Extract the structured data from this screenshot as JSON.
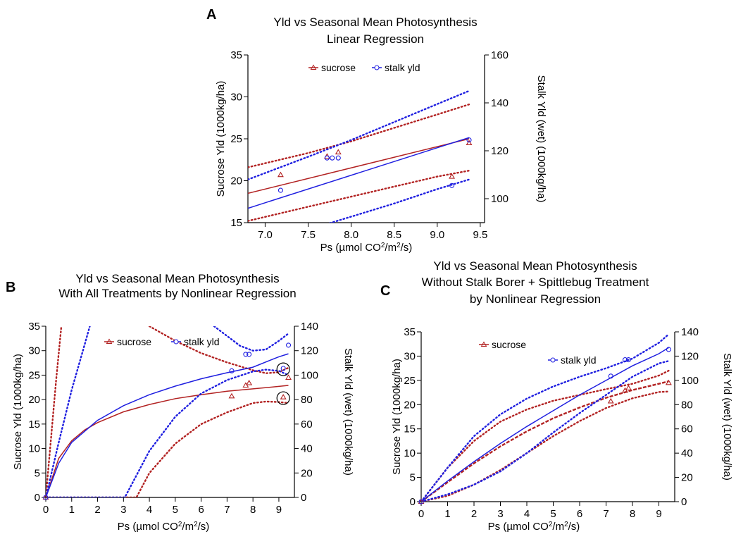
{
  "chart_data": [
    {
      "panel": "A",
      "type": "scatter",
      "title": [
        "Yld  vs Seasonal Mean Photosynthesis",
        "Linear Regression"
      ],
      "xlabel": "Ps (µmol CO2/m2/s)",
      "xlabel_parts": {
        "pre": "Ps (",
        "mu": "µ",
        "mid": "mol CO",
        "sup1": "2",
        "mid2": "/m",
        "sup2": "2",
        "post": "/s)"
      },
      "ylabel": "Sucrose Yld (1000kg/ha)",
      "y2label": "Stalk Yld (wet) (1000kg/ha)",
      "xlim": [
        6.8,
        9.55
      ],
      "ylim": [
        15,
        35
      ],
      "y2lim": [
        90,
        160
      ],
      "xticks": [
        "7.0",
        "7.5",
        "8.0",
        "8.5",
        "9.0",
        "9.5"
      ],
      "xtick_values": [
        7.0,
        7.5,
        8.0,
        8.5,
        9.0,
        9.5
      ],
      "yticks": [
        "15",
        "20",
        "25",
        "30",
        "35"
      ],
      "ytick_values": [
        15,
        20,
        25,
        30,
        35
      ],
      "y2ticks": [
        "100",
        "120",
        "140",
        "160"
      ],
      "y2tick_values": [
        100,
        120,
        140,
        160
      ],
      "legend": [
        "sucrose",
        "stalk yld"
      ],
      "series": [
        {
          "name": "sucrose",
          "axis": "left",
          "color": "#b22222",
          "marker": "triangle",
          "points": [
            [
              7.18,
              20.7
            ],
            [
              7.72,
              22.9
            ],
            [
              7.85,
              23.4
            ],
            [
              9.17,
              20.5
            ],
            [
              9.37,
              24.5
            ]
          ],
          "fit": [
            [
              6.8,
              18.5
            ],
            [
              9.37,
              25.0
            ]
          ],
          "ci_upper": [
            [
              6.8,
              21.6
            ],
            [
              7.5,
              23.3
            ],
            [
              8.0,
              24.7
            ],
            [
              8.5,
              26.3
            ],
            [
              9.0,
              27.9
            ],
            [
              9.37,
              29.1
            ]
          ],
          "ci_lower": [
            [
              6.8,
              15.2
            ],
            [
              7.5,
              16.9
            ],
            [
              8.0,
              18.1
            ],
            [
              8.5,
              19.3
            ],
            [
              9.0,
              20.5
            ],
            [
              9.37,
              21.2
            ]
          ]
        },
        {
          "name": "stalk yld",
          "axis": "right",
          "color": "#1f1fe0",
          "marker": "circle",
          "points": [
            [
              7.18,
              103.5
            ],
            [
              7.72,
              117.0
            ],
            [
              7.78,
              117.0
            ],
            [
              7.85,
              117.0
            ],
            [
              9.17,
              105.5
            ],
            [
              9.37,
              124.5
            ]
          ],
          "fit": [
            [
              6.8,
              96.0
            ],
            [
              9.37,
              125.5
            ]
          ],
          "ci_upper": [
            [
              6.8,
              108.0
            ],
            [
              7.5,
              117.5
            ],
            [
              8.0,
              124.5
            ],
            [
              8.5,
              132.0
            ],
            [
              9.0,
              139.5
            ],
            [
              9.37,
              145.0
            ]
          ],
          "ci_lower": [
            [
              7.4,
              86.0
            ],
            [
              8.0,
              92.5
            ],
            [
              8.5,
              98.0
            ],
            [
              9.0,
              104.0
            ],
            [
              9.37,
              108.0
            ]
          ]
        }
      ]
    },
    {
      "panel": "B",
      "type": "scatter",
      "title": [
        "Yld  vs Seasonal Mean Photosynthesis",
        "With All Treatments by Nonlinear Regression"
      ],
      "xlabel": "Ps (µmol CO2/m2/s)",
      "xlabel_parts": {
        "pre": "Ps (",
        "mu": "µ",
        "mid": "mol CO",
        "sup1": "2",
        "mid2": "/m",
        "sup2": "2",
        "post": "/s)"
      },
      "ylabel": "Sucrose Yld (1000kg/ha)",
      "y2label": "Stalk Yld (wet) (1000kg/ha)",
      "xlim": [
        0,
        9.6
      ],
      "ylim": [
        0,
        35
      ],
      "y2lim": [
        0,
        140
      ],
      "xticks": [
        "0",
        "1",
        "2",
        "3",
        "4",
        "5",
        "6",
        "7",
        "8",
        "9"
      ],
      "xtick_values": [
        0,
        1,
        2,
        3,
        4,
        5,
        6,
        7,
        8,
        9
      ],
      "yticks": [
        "0",
        "5",
        "10",
        "15",
        "20",
        "25",
        "30",
        "35"
      ],
      "ytick_values": [
        0,
        5,
        10,
        15,
        20,
        25,
        30,
        35
      ],
      "y2ticks": [
        "0",
        "20",
        "40",
        "60",
        "80",
        "100",
        "120",
        "140"
      ],
      "y2tick_values": [
        0,
        20,
        40,
        60,
        80,
        100,
        120,
        140
      ],
      "legend": [
        "sucrose",
        "stalk yld"
      ],
      "annotations": [
        {
          "type": "circle",
          "x": 9.17,
          "y": 26.2
        },
        {
          "type": "circle",
          "x": 9.17,
          "y": 20.3
        }
      ],
      "series": [
        {
          "name": "sucrose",
          "axis": "left",
          "color": "#b22222",
          "marker": "triangle",
          "points": [
            [
              0,
              0
            ],
            [
              7.18,
              20.7
            ],
            [
              7.72,
              22.9
            ],
            [
              7.85,
              23.4
            ],
            [
              9.17,
              20.5
            ],
            [
              9.37,
              24.5
            ]
          ],
          "fit": [
            [
              0,
              0
            ],
            [
              0.5,
              8.0
            ],
            [
              1.0,
              11.6
            ],
            [
              1.5,
              13.8
            ],
            [
              2.0,
              15.3
            ],
            [
              3.0,
              17.5
            ],
            [
              4.0,
              19.0
            ],
            [
              5.0,
              20.2
            ],
            [
              6.0,
              21.0
            ],
            [
              7.0,
              21.7
            ],
            [
              8.0,
              22.2
            ],
            [
              9.0,
              22.7
            ],
            [
              9.37,
              22.9
            ]
          ],
          "ci_upper": [
            [
              0,
              0
            ],
            [
              0.2,
              12.0
            ],
            [
              0.4,
              24.0
            ],
            [
              0.6,
              35.0
            ]
          ],
          "ci_upper2": [
            [
              4.0,
              35.0
            ],
            [
              5.0,
              32.0
            ],
            [
              6.0,
              29.5
            ],
            [
              7.0,
              27.6
            ],
            [
              8.0,
              26.0
            ],
            [
              8.5,
              25.4
            ],
            [
              9.0,
              25.6
            ],
            [
              9.37,
              26.5
            ]
          ],
          "ci_lower": [
            [
              0,
              0
            ],
            [
              3.5,
              0
            ],
            [
              4.0,
              5.0
            ],
            [
              5.0,
              11.0
            ],
            [
              6.0,
              15.0
            ],
            [
              7.0,
              17.4
            ],
            [
              8.0,
              19.3
            ],
            [
              8.5,
              19.6
            ],
            [
              9.0,
              19.5
            ],
            [
              9.37,
              19.3
            ]
          ]
        },
        {
          "name": "stalk yld",
          "axis": "right",
          "color": "#1f1fe0",
          "marker": "circle",
          "points": [
            [
              0,
              0
            ],
            [
              7.18,
              103.5
            ],
            [
              7.72,
              117.0
            ],
            [
              7.85,
              117.0
            ],
            [
              9.17,
              105.5
            ],
            [
              9.37,
              124.5
            ]
          ],
          "fit": [
            [
              0,
              0
            ],
            [
              0.5,
              28.0
            ],
            [
              1.0,
              45.0
            ],
            [
              2.0,
              63.0
            ],
            [
              3.0,
              75.0
            ],
            [
              4.0,
              84.0
            ],
            [
              5.0,
              91.0
            ],
            [
              6.0,
              97.0
            ],
            [
              7.0,
              102.0
            ],
            [
              8.0,
              106.5
            ],
            [
              9.0,
              115.0
            ],
            [
              9.37,
              117.5
            ]
          ],
          "ci_upper": [
            [
              0,
              0
            ],
            [
              0.5,
              45.0
            ],
            [
              1.0,
              88.0
            ],
            [
              1.5,
              125.0
            ],
            [
              1.7,
              140.0
            ]
          ],
          "ci_upper2": [
            [
              6.5,
              140.0
            ],
            [
              7.5,
              124.0
            ],
            [
              8.0,
              120.0
            ],
            [
              8.5,
              121.0
            ],
            [
              9.0,
              128.0
            ],
            [
              9.37,
              134.0
            ]
          ],
          "ci_lower": [
            [
              0,
              0
            ],
            [
              3.05,
              0
            ],
            [
              4.0,
              38.0
            ],
            [
              5.0,
              66.0
            ],
            [
              6.0,
              85.0
            ],
            [
              7.0,
              96.0
            ],
            [
              8.0,
              103.0
            ],
            [
              8.5,
              104.5
            ],
            [
              9.0,
              103.5
            ],
            [
              9.37,
              100.0
            ]
          ]
        }
      ]
    },
    {
      "panel": "C",
      "type": "scatter",
      "title": [
        "Yld  vs Seasonal Mean Photosynthesis",
        "Without Stalk Borer + Spittlebug Treatment",
        "by Nonlinear Regression"
      ],
      "xlabel": "Ps (µmol CO2/m2/s)",
      "xlabel_parts": {
        "pre": "Ps (",
        "mu": "µ",
        "mid": "mol CO",
        "sup1": "2",
        "mid2": "/m",
        "sup2": "2",
        "post": "/s)"
      },
      "ylabel": "Sucrose Yld (1000kg/ha)",
      "y2label": "Stalk Yld (wet) (1000kg/ha)",
      "xlim": [
        0,
        9.6
      ],
      "ylim": [
        0,
        35
      ],
      "y2lim": [
        0,
        140
      ],
      "xticks": [
        "0",
        "1",
        "2",
        "3",
        "4",
        "5",
        "6",
        "7",
        "8",
        "9"
      ],
      "xtick_values": [
        0,
        1,
        2,
        3,
        4,
        5,
        6,
        7,
        8,
        9
      ],
      "yticks": [
        "0",
        "5",
        "10",
        "15",
        "20",
        "25",
        "30",
        "35"
      ],
      "ytick_values": [
        0,
        5,
        10,
        15,
        20,
        25,
        30,
        35
      ],
      "y2ticks": [
        "0",
        "20",
        "40",
        "60",
        "80",
        "100",
        "120",
        "140"
      ],
      "y2tick_values": [
        0,
        20,
        40,
        60,
        80,
        100,
        120,
        140
      ],
      "legend": [
        "sucrose",
        "stalk yld"
      ],
      "series": [
        {
          "name": "sucrose",
          "axis": "left",
          "color": "#b22222",
          "marker": "triangle",
          "points": [
            [
              0,
              0
            ],
            [
              7.18,
              20.7
            ],
            [
              7.72,
              22.9
            ],
            [
              7.85,
              23.4
            ],
            [
              9.37,
              24.5
            ]
          ],
          "fit": [
            [
              0,
              0
            ],
            [
              1.0,
              4.0
            ],
            [
              2.0,
              7.9
            ],
            [
              3.0,
              11.4
            ],
            [
              4.0,
              14.5
            ],
            [
              5.0,
              17.2
            ],
            [
              6.0,
              19.4
            ],
            [
              7.0,
              21.4
            ],
            [
              8.0,
              23.0
            ],
            [
              9.0,
              24.3
            ],
            [
              9.37,
              24.8
            ]
          ],
          "ci_upper": [
            [
              0,
              0
            ],
            [
              1.0,
              7.0
            ],
            [
              2.0,
              12.5
            ],
            [
              3.0,
              16.5
            ],
            [
              4.0,
              19.0
            ],
            [
              5.0,
              20.8
            ],
            [
              6.0,
              22.0
            ],
            [
              7.0,
              23.2
            ],
            [
              8.0,
              24.3
            ],
            [
              9.0,
              26.0
            ],
            [
              9.37,
              27.0
            ]
          ],
          "ci_lower": [
            [
              0,
              0
            ],
            [
              1.0,
              1.2
            ],
            [
              2.0,
              3.5
            ],
            [
              3.0,
              6.5
            ],
            [
              4.0,
              10.0
            ],
            [
              5.0,
              13.5
            ],
            [
              6.0,
              16.6
            ],
            [
              7.0,
              19.3
            ],
            [
              8.0,
              21.3
            ],
            [
              9.0,
              22.6
            ],
            [
              9.37,
              22.7
            ]
          ]
        },
        {
          "name": "stalk yld",
          "axis": "right",
          "color": "#1f1fe0",
          "marker": "circle",
          "points": [
            [
              0,
              0
            ],
            [
              7.18,
              103.5
            ],
            [
              7.72,
              117.0
            ],
            [
              7.85,
              117.0
            ],
            [
              9.37,
              125.5
            ]
          ],
          "fit": [
            [
              0,
              0
            ],
            [
              1.0,
              17.0
            ],
            [
              2.0,
              33.0
            ],
            [
              3.0,
              48.0
            ],
            [
              4.0,
              62.0
            ],
            [
              5.0,
              75.0
            ],
            [
              6.0,
              88.0
            ],
            [
              7.0,
              100.0
            ],
            [
              8.0,
              112.0
            ],
            [
              9.0,
              122.0
            ],
            [
              9.37,
              127.0
            ]
          ],
          "ci_upper": [
            [
              0,
              0
            ],
            [
              1.0,
              28.0
            ],
            [
              2.0,
              54.0
            ],
            [
              3.0,
              72.0
            ],
            [
              4.0,
              85.0
            ],
            [
              5.0,
              95.0
            ],
            [
              6.0,
              103.0
            ],
            [
              7.0,
              110.0
            ],
            [
              8.0,
              118.0
            ],
            [
              9.0,
              131.0
            ],
            [
              9.37,
              138.0
            ]
          ],
          "ci_lower": [
            [
              0,
              0
            ],
            [
              1.0,
              6.0
            ],
            [
              2.0,
              14.0
            ],
            [
              3.0,
              25.0
            ],
            [
              4.0,
              40.0
            ],
            [
              5.0,
              57.0
            ],
            [
              6.0,
              73.0
            ],
            [
              7.0,
              88.0
            ],
            [
              8.0,
              103.0
            ],
            [
              9.0,
              114.0
            ],
            [
              9.37,
              116.0
            ]
          ]
        }
      ]
    }
  ]
}
